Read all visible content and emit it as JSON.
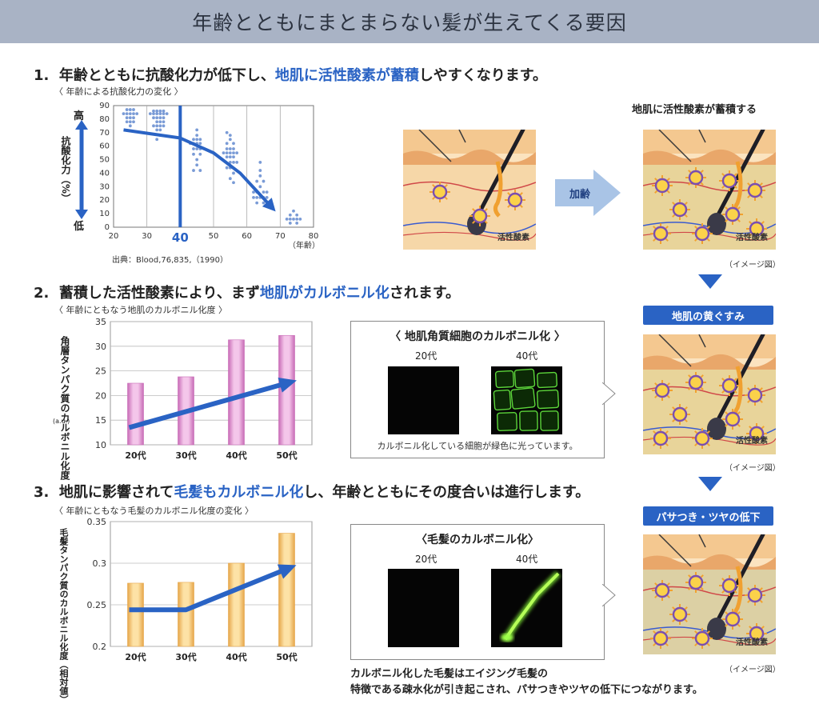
{
  "header": {
    "title": "年齢とともにまとまらない髪が生えてくる要因"
  },
  "section1": {
    "number": "1.",
    "text_a": "年齢とともに抗酸化力が低下し、",
    "text_hl": "地肌に活性酸素が蓄積",
    "text_b": "しやすくなります。",
    "subtitle": "〈 年齢による抗酸化力の変化 〉",
    "source": "出典：Blood,76,835,（1990）",
    "right_caption": "地肌に活性酸素が蓄積する",
    "arrow_label": "加齢",
    "ros_label": "活性酸素",
    "image_note": "（イメージ図）"
  },
  "section2": {
    "number": "2.",
    "text_a": "蓄積した活性酸素により、まず",
    "text_hl": "地肌がカルボニル化",
    "text_b": "されます。",
    "subtitle": "〈 年齢にともなう地肌のカルボニル化度 〉",
    "ylabel_main": "角層タンパク質のカルボニル化度",
    "ylabel_unit": "(a.u.)",
    "panel_title": "〈 地肌角質細胞のカルボニル化 〉",
    "panel_label_20": "20代",
    "panel_label_40": "40代",
    "panel_caption": "カルボニル化している細胞が緑色に光っています。",
    "banner": "地肌の黄ぐすみ",
    "ros_label": "活性酸素",
    "image_note": "（イメージ図）"
  },
  "section3": {
    "number": "3.",
    "text_a": "地肌に影響されて",
    "text_hl": "毛髪もカルボニル化",
    "text_b": "し、年齢とともにその度合いは進行します。",
    "subtitle": "〈 年齢にともなう毛髪のカルボニル化度の変化 〉",
    "ylabel_main": "毛髪タンパク質のカルボニル化度（相対値）",
    "panel_title": "〈毛髪のカルボニル化〉",
    "panel_label_20": "20代",
    "panel_label_40": "40代",
    "banner": "パサつき・ツヤの低下",
    "ros_label": "活性酸素",
    "image_note": "（イメージ図）",
    "bottom_line1": "カルボニル化した毛髪はエイジング毛髪の",
    "bottom_line2": "特徴である疎水化が引き起こされ、パサつきやツヤの低下につながります。"
  },
  "chart_data": [
    {
      "type": "scatter",
      "title": "〈 年齢による抗酸化力の変化 〉",
      "xlabel": "（年齢）",
      "ylabel_top": "高",
      "ylabel_mid": "抗酸化力（%）",
      "ylabel_bottom": "低",
      "xlim": [
        20,
        80
      ],
      "ylim": [
        0,
        90
      ],
      "xticks": [
        20,
        30,
        40,
        50,
        60,
        70,
        80
      ],
      "yticks": [
        0,
        10,
        20,
        30,
        40,
        50,
        60,
        70,
        80,
        90
      ],
      "highlight_x": 40,
      "trend": [
        [
          23,
          72
        ],
        [
          40,
          66
        ],
        [
          50,
          55
        ],
        [
          58,
          40
        ],
        [
          64,
          24
        ],
        [
          67,
          16
        ]
      ],
      "points": [
        [
          24,
          87
        ],
        [
          25,
          87
        ],
        [
          26,
          87
        ],
        [
          23,
          84
        ],
        [
          24,
          84
        ],
        [
          25,
          84
        ],
        [
          26,
          84
        ],
        [
          27,
          84
        ],
        [
          24,
          81
        ],
        [
          25,
          81
        ],
        [
          26,
          81
        ],
        [
          24,
          78
        ],
        [
          25,
          78
        ],
        [
          26,
          78
        ],
        [
          25,
          75
        ],
        [
          32,
          86
        ],
        [
          33,
          86
        ],
        [
          34,
          86
        ],
        [
          35,
          86
        ],
        [
          31,
          84
        ],
        [
          32,
          84
        ],
        [
          33,
          84
        ],
        [
          34,
          84
        ],
        [
          35,
          84
        ],
        [
          36,
          84
        ],
        [
          32,
          81
        ],
        [
          33,
          81
        ],
        [
          34,
          81
        ],
        [
          35,
          81
        ],
        [
          33,
          78
        ],
        [
          34,
          78
        ],
        [
          35,
          78
        ],
        [
          32,
          75
        ],
        [
          33,
          75
        ],
        [
          34,
          75
        ],
        [
          35,
          75
        ],
        [
          33,
          72
        ],
        [
          34,
          72
        ],
        [
          34,
          68
        ],
        [
          33,
          65
        ],
        [
          45,
          72
        ],
        [
          45,
          68
        ],
        [
          44,
          65
        ],
        [
          45,
          65
        ],
        [
          46,
          65
        ],
        [
          43,
          62
        ],
        [
          44,
          62
        ],
        [
          45,
          62
        ],
        [
          46,
          62
        ],
        [
          44,
          58
        ],
        [
          45,
          58
        ],
        [
          46,
          58
        ],
        [
          44,
          54
        ],
        [
          46,
          54
        ],
        [
          45,
          50
        ],
        [
          45,
          46
        ],
        [
          44,
          42
        ],
        [
          46,
          42
        ],
        [
          54,
          70
        ],
        [
          55,
          68
        ],
        [
          55,
          65
        ],
        [
          54,
          62
        ],
        [
          56,
          62
        ],
        [
          54,
          58
        ],
        [
          55,
          58
        ],
        [
          56,
          58
        ],
        [
          53,
          55
        ],
        [
          54,
          55
        ],
        [
          55,
          55
        ],
        [
          56,
          55
        ],
        [
          57,
          55
        ],
        [
          54,
          52
        ],
        [
          55,
          52
        ],
        [
          56,
          52
        ],
        [
          55,
          48
        ],
        [
          56,
          48
        ],
        [
          57,
          48
        ],
        [
          54,
          44
        ],
        [
          55,
          44
        ],
        [
          56,
          40
        ],
        [
          55,
          36
        ],
        [
          56,
          33
        ],
        [
          64,
          48
        ],
        [
          64,
          42
        ],
        [
          64,
          38
        ],
        [
          63,
          34
        ],
        [
          65,
          34
        ],
        [
          64,
          30
        ],
        [
          62,
          26
        ],
        [
          63,
          26
        ],
        [
          65,
          26
        ],
        [
          66,
          26
        ],
        [
          62,
          22
        ],
        [
          63,
          22
        ],
        [
          64,
          22
        ],
        [
          65,
          22
        ],
        [
          66,
          22
        ],
        [
          63,
          18
        ],
        [
          65,
          18
        ],
        [
          74,
          12
        ],
        [
          73,
          9
        ],
        [
          75,
          9
        ],
        [
          72,
          6
        ],
        [
          73,
          6
        ],
        [
          74,
          6
        ],
        [
          75,
          6
        ],
        [
          76,
          6
        ],
        [
          73,
          3
        ],
        [
          75,
          3
        ]
      ]
    },
    {
      "type": "bar",
      "title": "〈 年齢にともなう地肌のカルボニル化度 〉",
      "categories": [
        "20代",
        "30代",
        "40代",
        "50代"
      ],
      "values": [
        22.5,
        23.8,
        31.3,
        32.2
      ],
      "ylim": [
        10,
        35
      ],
      "yticks": [
        10,
        15,
        20,
        25,
        30,
        35
      ],
      "ylabel": "角層タンパク質のカルボニル化度",
      "ylabel_unit": "(a.u.)",
      "trend": [
        [
          0,
          13.5
        ],
        [
          3,
          22.5
        ]
      ]
    },
    {
      "type": "bar",
      "title": "〈 年齢にともなう毛髪のカルボニル化度の変化 〉",
      "categories": [
        "20代",
        "30代",
        "40代",
        "50代"
      ],
      "values": [
        0.276,
        0.277,
        0.3,
        0.336
      ],
      "ylim": [
        0.2,
        0.35
      ],
      "yticks": [
        0.2,
        0.25,
        0.3,
        0.35
      ],
      "ylabel": "毛髪タンパク質のカルボニル化度（相対値）",
      "trend": [
        [
          0,
          0.244
        ],
        [
          1,
          0.244
        ],
        [
          3,
          0.293
        ]
      ]
    }
  ]
}
